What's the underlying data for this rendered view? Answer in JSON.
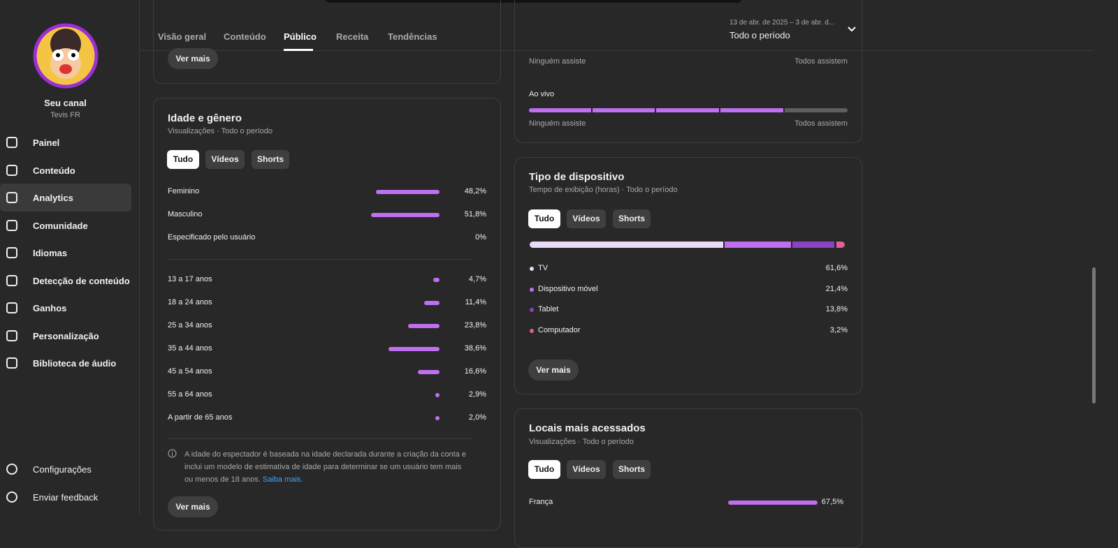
{
  "sidebar": {
    "channel_name": "Seu canal",
    "channel_handle": "Tevis FR",
    "items": [
      "Painel",
      "Conteúdo",
      "Analytics",
      "Comunidade",
      "Idiomas",
      "Detecção de conteúdo",
      "Ganhos",
      "Personalização",
      "Biblioteca de áudio"
    ],
    "bottom_items": [
      "Configurações",
      "Enviar feedback"
    ]
  },
  "tabs": [
    "Visão geral",
    "Conteúdo",
    "Público",
    "Receita",
    "Tendências"
  ],
  "date_range": {
    "range": "13 de abr. de 2025 – 3 de abr. d...",
    "period": "Todo o período"
  },
  "top_left_card": {
    "button": "Ver mais"
  },
  "top_right_card": {
    "rows": [
      {
        "start_label": "Ninguém assiste",
        "end_label": "Todos assistem"
      },
      {
        "label": "Ao vivo",
        "start_label": "Ninguém assiste",
        "end_label": "Todos assistem"
      }
    ]
  },
  "age_gender": {
    "title": "Idade e gênero",
    "subtitle": "Visualizações · Todo o período",
    "filters": [
      "Tudo",
      "Vídeos",
      "Shorts"
    ],
    "gender": [
      {
        "label": "Feminino",
        "value": 48.2,
        "value_label": "48,2%"
      },
      {
        "label": "Masculino",
        "value": 51.8,
        "value_label": "51,8%"
      },
      {
        "label": "Especificado pelo usuário",
        "value": 0,
        "value_label": "0%"
      }
    ],
    "age": [
      {
        "label": "13 a 17 anos",
        "value": 4.7,
        "value_label": "4,7%"
      },
      {
        "label": "18 a 24 anos",
        "value": 11.4,
        "value_label": "11,4%"
      },
      {
        "label": "25 a 34 anos",
        "value": 23.8,
        "value_label": "23,8%"
      },
      {
        "label": "35 a 44 anos",
        "value": 38.6,
        "value_label": "38,6%"
      },
      {
        "label": "45 a 54 anos",
        "value": 16.6,
        "value_label": "16,6%"
      },
      {
        "label": "55 a 64 anos",
        "value": 2.9,
        "value_label": "2,9%"
      },
      {
        "label": "A partir de 65 anos",
        "value": 2.0,
        "value_label": "2,0%"
      }
    ],
    "note": "A idade do espectador é baseada na idade declarada durante a criação da conta e inclui um modelo de estimativa de idade para determinar se um usuário tem mais ou menos de 18 anos.",
    "note_link": "Saiba mais.",
    "button": "Ver mais",
    "bar_color": "#bf6ff0"
  },
  "device": {
    "title": "Tipo de dispositivo",
    "subtitle": "Tempo de exibição (horas) · Todo o período",
    "filters": [
      "Tudo",
      "Vídeos",
      "Shorts"
    ],
    "segments": [
      {
        "label": "TV",
        "value": 61.6,
        "value_label": "61,6%",
        "color": "#ead9f7"
      },
      {
        "label": "Dispositivo móvel",
        "value": 21.4,
        "value_label": "21,4%",
        "color": "#bf6ff0"
      },
      {
        "label": "Tablet",
        "value": 13.8,
        "value_label": "13,8%",
        "color": "#8b42c4"
      },
      {
        "label": "Computador",
        "value": 3.2,
        "value_label": "3,2%",
        "color": "#e0609a"
      }
    ],
    "button": "Ver mais"
  },
  "locations": {
    "title": "Locais mais acessados",
    "subtitle": "Visualizações · Todo o período",
    "filters": [
      "Tudo",
      "Vídeos",
      "Shorts"
    ],
    "rows": [
      {
        "label": "França",
        "value": 67.5,
        "value_label": "67,5%"
      }
    ],
    "bar_color": "#bf6ff0"
  }
}
